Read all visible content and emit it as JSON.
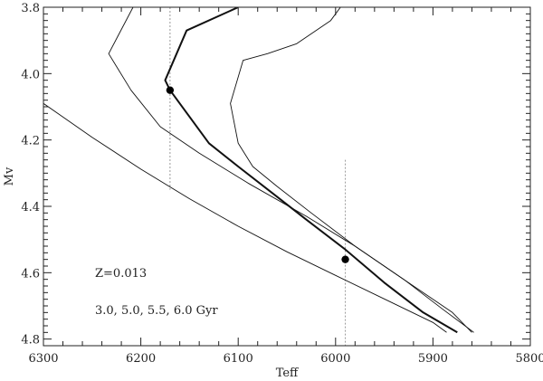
{
  "chart_data": {
    "type": "line",
    "title": "",
    "xlabel": "Teff",
    "ylabel": "Mv",
    "xlim": [
      6300,
      5800
    ],
    "ylim": [
      4.82,
      3.8
    ],
    "x_reversed": true,
    "y_reversed": true,
    "grid": false,
    "x_ticks": [
      6300,
      6200,
      6100,
      6000,
      5900,
      5800
    ],
    "y_ticks": [
      3.8,
      4.0,
      4.2,
      4.4,
      4.6,
      4.8
    ],
    "x_tick_labels": [
      "6300",
      "6200",
      "6100",
      "6000",
      "5900",
      "5800"
    ],
    "y_tick_labels": [
      "3.8",
      "4.0",
      "4.2",
      "4.4",
      "4.6",
      "4.8"
    ],
    "annotations": [
      "Z=0.013",
      "3.0, 5.0, 5.5, 6.0 Gyr"
    ],
    "series": [
      {
        "style": "thin",
        "points": [
          [
            6300,
            4.09
          ],
          [
            6250,
            4.192
          ],
          [
            6200,
            4.288
          ],
          [
            6150,
            4.377
          ],
          [
            6100,
            4.46
          ],
          [
            6050,
            4.537
          ],
          [
            6000,
            4.608
          ],
          [
            5950,
            4.679
          ],
          [
            5900,
            4.75
          ],
          [
            5886,
            4.78
          ]
        ]
      },
      {
        "style": "thin",
        "points": [
          [
            6208,
            3.8
          ],
          [
            6233,
            3.94
          ],
          [
            6210,
            4.05
          ],
          [
            6180,
            4.16
          ],
          [
            6140,
            4.24
          ],
          [
            6090,
            4.33
          ],
          [
            6030,
            4.43
          ],
          [
            5980,
            4.52
          ],
          [
            5930,
            4.62
          ],
          [
            5880,
            4.72
          ],
          [
            5860,
            4.78
          ]
        ]
      },
      {
        "style": "thick",
        "points": [
          [
            6100,
            3.8
          ],
          [
            6153,
            3.87
          ],
          [
            6175,
            4.02
          ],
          [
            6170,
            4.05
          ],
          [
            6130,
            4.21
          ],
          [
            6100,
            4.28
          ],
          [
            6065,
            4.36
          ],
          [
            6030,
            4.44
          ],
          [
            5990,
            4.53
          ],
          [
            5950,
            4.63
          ],
          [
            5910,
            4.72
          ],
          [
            5875,
            4.78
          ]
        ]
      },
      {
        "style": "thin",
        "points": [
          [
            5995,
            3.8
          ],
          [
            6005,
            3.84
          ],
          [
            6040,
            3.91
          ],
          [
            6070,
            3.94
          ],
          [
            6095,
            3.96
          ],
          [
            6108,
            4.09
          ],
          [
            6100,
            4.21
          ],
          [
            6085,
            4.28
          ],
          [
            6060,
            4.34
          ],
          [
            6025,
            4.42
          ],
          [
            5980,
            4.52
          ],
          [
            5930,
            4.62
          ],
          [
            5890,
            4.71
          ],
          [
            5858,
            4.78
          ]
        ]
      }
    ],
    "points": [
      {
        "x": 6170,
        "y": 4.05,
        "yerr_low": 3.8,
        "yerr_high": 4.35
      },
      {
        "x": 5990,
        "y": 4.56,
        "yerr_low": 4.26,
        "yerr_high": 4.83
      }
    ]
  }
}
